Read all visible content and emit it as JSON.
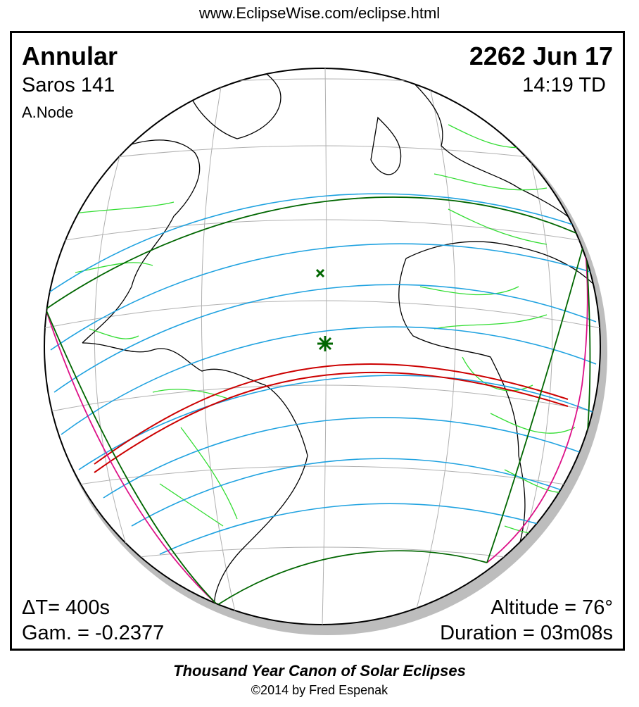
{
  "header": {
    "url": "www.EclipseWise.com/eclipse.html"
  },
  "eclipse": {
    "type": "Annular",
    "date": "2262 Jun 17",
    "saros": "Saros 141",
    "time": "14:19 TD",
    "node": "A.Node",
    "delta_t": "ΔT=    400s",
    "gamma": "Gam. = -0.2377",
    "altitude": "Altitude = 76°",
    "duration": "Duration = 03m08s"
  },
  "map": {
    "colors": {
      "globe_outline": "#000000",
      "graticule": "#b0b0b0",
      "coastline": "#000000",
      "borders": "#33dd33",
      "penumbral_limit": "#006600",
      "contours": "#1fa2e0",
      "central_path": "#cc0000",
      "rise_set_curve": "#dd1188",
      "shadow": "#bdbdbd"
    },
    "markers": [
      "greatest-eclipse-star",
      "sub-solar-x-marker"
    ]
  },
  "footer": {
    "title": "Thousand Year Canon of Solar Eclipses",
    "copyright": "©2014 by Fred Espenak"
  }
}
